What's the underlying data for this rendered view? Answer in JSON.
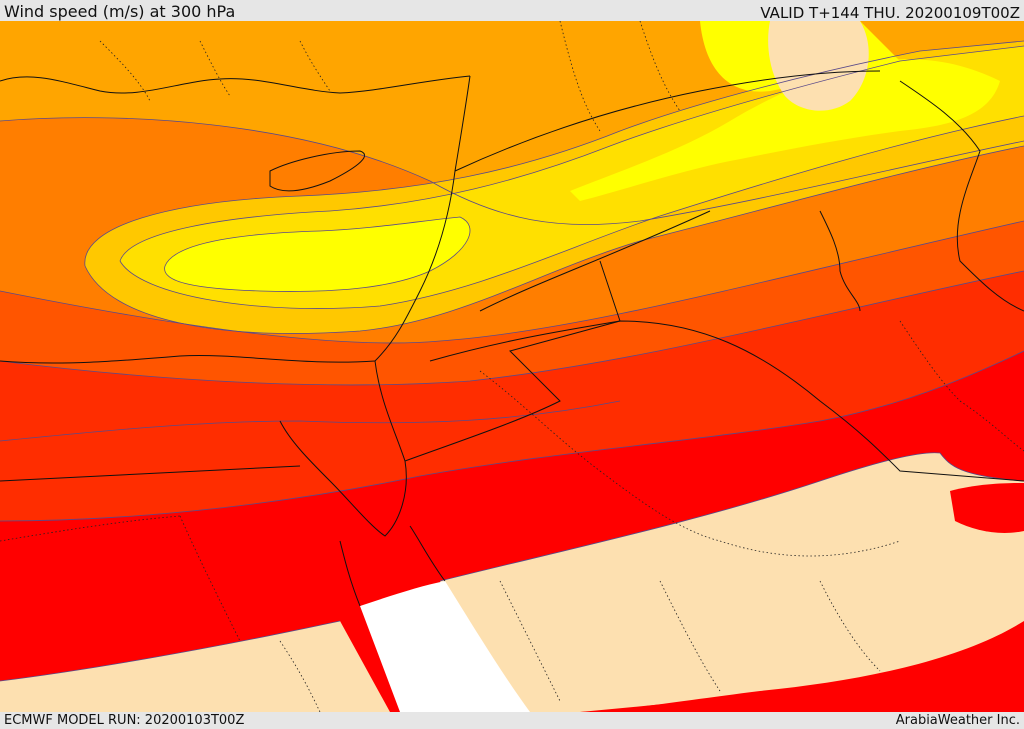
{
  "header": {
    "title": "Wind speed (m/s) at 300 hPa",
    "valid": "VALID T+144 THU. 20200109T00Z"
  },
  "footer": {
    "model_run": "ECMWF MODEL RUN: 20200103T00Z",
    "provider": "ArabiaWeather Inc."
  },
  "colors": {
    "band_1": "#fde0b0",
    "band_2": "#ffff00",
    "band_3": "#ffe000",
    "band_4": "#ffc800",
    "band_5": "#ffa500",
    "band_6": "#ff7e00",
    "band_7": "#ff5500",
    "band_8": "#ff2d00",
    "band_9": "#ff0000",
    "sea_mask": "#ffffff",
    "contour_line": "#5a4a8a",
    "coastline": "#111111"
  }
}
